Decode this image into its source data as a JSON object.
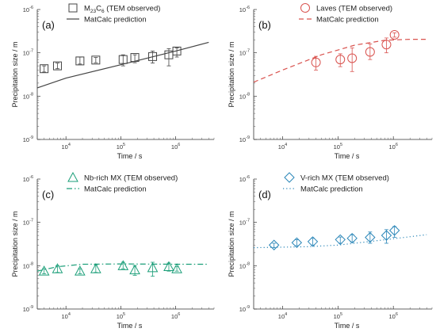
{
  "chart_data": [
    {
      "type": "scatter",
      "panel_label": "(a)",
      "xlabel": "Time / s",
      "ylabel": "Precipitation size / m",
      "xscale": "log",
      "yscale": "log",
      "xlim": [
        3000,
        5000000
      ],
      "ylim": [
        1e-09,
        1e-06
      ],
      "x_ticks": [
        "10^4",
        "10^5",
        "10^6"
      ],
      "y_ticks": [
        "10^-9",
        "10^-8",
        "10^-7",
        "10^-6"
      ],
      "color": "#444444",
      "marker": "square",
      "legend_position": "top",
      "series": [
        {
          "name": "M23C6 (TEM observed)",
          "legend_main": "M",
          "legend_sub1": "23",
          "legend_mid": "C",
          "legend_sub2": "6",
          "legend_tail": " (TEM observed)",
          "x": [
            4000,
            7000,
            18000,
            35000,
            110000,
            180000,
            380000,
            750000,
            1050000
          ],
          "y": [
            4.3e-08,
            5e-08,
            6.5e-08,
            6.8e-08,
            7e-08,
            7.8e-08,
            8.2e-08,
            9e-08,
            1.1e-07
          ],
          "err_low": [
            3.6e-08,
            4.3e-08,
            5.5e-08,
            5.9e-08,
            5e-08,
            5.9e-08,
            5.8e-08,
            5e-08,
            8e-08
          ],
          "err_high": [
            5e-08,
            5.8e-08,
            8e-08,
            7.8e-08,
            9e-08,
            9e-08,
            1.1e-07,
            1.25e-07,
            1.3e-07
          ]
        },
        {
          "name": "MatCalc prediction",
          "line": "solid",
          "x": [
            3000,
            10000,
            100000,
            1000000,
            4000000
          ],
          "y": [
            1.55e-08,
            2.6e-08,
            5.3e-08,
            1.1e-07,
            1.75e-07
          ]
        }
      ]
    },
    {
      "type": "scatter",
      "panel_label": "(b)",
      "xlabel": "Time / s",
      "ylabel": "Precipitation size / m",
      "xscale": "log",
      "yscale": "log",
      "xlim": [
        3000,
        5000000
      ],
      "ylim": [
        1e-09,
        1e-06
      ],
      "x_ticks": [
        "10^4",
        "10^5",
        "10^6"
      ],
      "y_ticks": [
        "10^-9",
        "10^-8",
        "10^-7",
        "10^-6"
      ],
      "color": "#d9534f",
      "marker": "circle",
      "legend_position": "top",
      "series": [
        {
          "name": "Laves (TEM observed)",
          "x": [
            40000,
            110000,
            180000,
            380000,
            750000,
            1050000
          ],
          "y": [
            6e-08,
            7e-08,
            7.5e-08,
            1.05e-07,
            1.55e-07,
            2.6e-07
          ],
          "err_low": [
            4e-08,
            4.8e-08,
            3.7e-08,
            7e-08,
            1e-07,
            2.3e-07
          ],
          "err_high": [
            8.3e-08,
            9.5e-08,
            1.3e-07,
            1.6e-07,
            2.2e-07,
            2.9e-07
          ]
        },
        {
          "name": "MatCalc prediction",
          "line": "dashed",
          "x": [
            3000,
            10000,
            50000,
            200000,
            700000,
            2000000,
            4000000
          ],
          "y": [
            2.1e-08,
            4e-08,
            9e-08,
            1.5e-07,
            1.95e-07,
            2.05e-07,
            2.05e-07
          ]
        }
      ]
    },
    {
      "type": "scatter",
      "panel_label": "(c)",
      "xlabel": "Time / s",
      "ylabel": "Precipitation size / m",
      "xscale": "log",
      "yscale": "log",
      "xlim": [
        3000,
        5000000
      ],
      "ylim": [
        1e-09,
        1e-06
      ],
      "x_ticks": [
        "10^4",
        "10^5",
        "10^6"
      ],
      "y_ticks": [
        "10^-9",
        "10^-8",
        "10^-7",
        "10^-6"
      ],
      "color": "#1a9e78",
      "marker": "triangle",
      "legend_position": "top",
      "series": [
        {
          "name": "Nb-rich MX (TEM observed)",
          "x": [
            4000,
            7000,
            18000,
            35000,
            110000,
            180000,
            380000,
            750000,
            1050000
          ],
          "y": [
            7.5e-09,
            8.5e-09,
            7.5e-09,
            8.5e-09,
            1e-08,
            8e-09,
            9e-09,
            9.5e-09,
            8.5e-09
          ],
          "err_low": [
            6.5e-09,
            7e-09,
            6.5e-09,
            7e-09,
            8.5e-09,
            6e-09,
            5.7e-09,
            7.5e-09,
            7.5e-09
          ],
          "err_high": [
            8.5e-09,
            1e-08,
            8.5e-09,
            1.05e-08,
            1.2e-08,
            1e-08,
            1.2e-08,
            1.15e-08,
            9.5e-09
          ]
        },
        {
          "name": "MatCalc prediction",
          "line": "dashdot",
          "x": [
            3000,
            7000,
            20000,
            100000,
            1000000,
            4000000
          ],
          "y": [
            7.5e-09,
            9.5e-09,
            1.08e-08,
            1.1e-08,
            1.08e-08,
            1.08e-08
          ]
        }
      ]
    },
    {
      "type": "scatter",
      "panel_label": "(d)",
      "xlabel": "Time / s",
      "ylabel": "Precipitation size / m",
      "xscale": "log",
      "yscale": "log",
      "xlim": [
        3000,
        5000000
      ],
      "ylim": [
        1e-09,
        1e-06
      ],
      "x_ticks": [
        "10^4",
        "10^5",
        "10^6"
      ],
      "y_ticks": [
        "10^-9",
        "10^-8",
        "10^-7",
        "10^-6"
      ],
      "color": "#2a86b8",
      "marker": "diamond",
      "legend_position": "top",
      "series": [
        {
          "name": "V-rich MX (TEM observed)",
          "x": [
            7000,
            18000,
            35000,
            110000,
            180000,
            380000,
            750000,
            1050000
          ],
          "y": [
            3e-08,
            3.4e-08,
            3.6e-08,
            4e-08,
            4.3e-08,
            4.5e-08,
            5e-08,
            6.5e-08
          ],
          "err_low": [
            2.6e-08,
            2.9e-08,
            3e-08,
            3.3e-08,
            3.5e-08,
            3.3e-08,
            3.3e-08,
            4.5e-08
          ],
          "err_high": [
            3.3e-08,
            4e-08,
            4.3e-08,
            4.6e-08,
            5.2e-08,
            6e-08,
            6.8e-08,
            8e-08
          ]
        },
        {
          "name": "MatCalc prediction",
          "line": "dotted",
          "x": [
            3000,
            30000,
            100000,
            300000,
            1000000,
            4000000
          ],
          "y": [
            2.6e-08,
            2.75e-08,
            3e-08,
            3.5e-08,
            4.2e-08,
            5.2e-08
          ]
        }
      ]
    }
  ]
}
